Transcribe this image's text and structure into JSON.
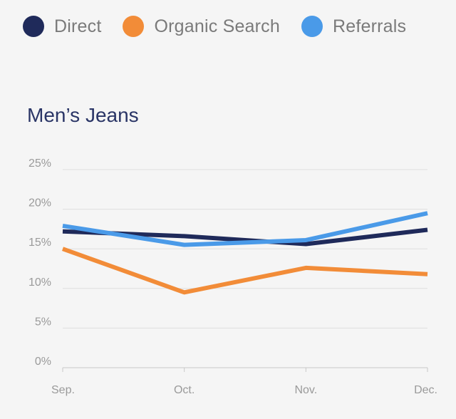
{
  "chart_data": {
    "type": "line",
    "title": "Men’s Jeans",
    "categories": [
      "Sep.",
      "Oct.",
      "Nov.",
      "Dec."
    ],
    "yticks": [
      "0%",
      "5%",
      "10%",
      "15%",
      "20%",
      "25%"
    ],
    "ylim": [
      0,
      25
    ],
    "grid": true,
    "legend_position": "top",
    "series": [
      {
        "name": "Direct",
        "color": "#1f2a5a",
        "values": [
          17.2,
          16.6,
          15.6,
          17.4
        ]
      },
      {
        "name": "Organic Search",
        "color": "#f28c38",
        "values": [
          15.0,
          9.5,
          12.6,
          11.8
        ]
      },
      {
        "name": "Referrals",
        "color": "#4a9ae8",
        "values": [
          17.9,
          15.5,
          16.1,
          19.5
        ]
      }
    ]
  }
}
